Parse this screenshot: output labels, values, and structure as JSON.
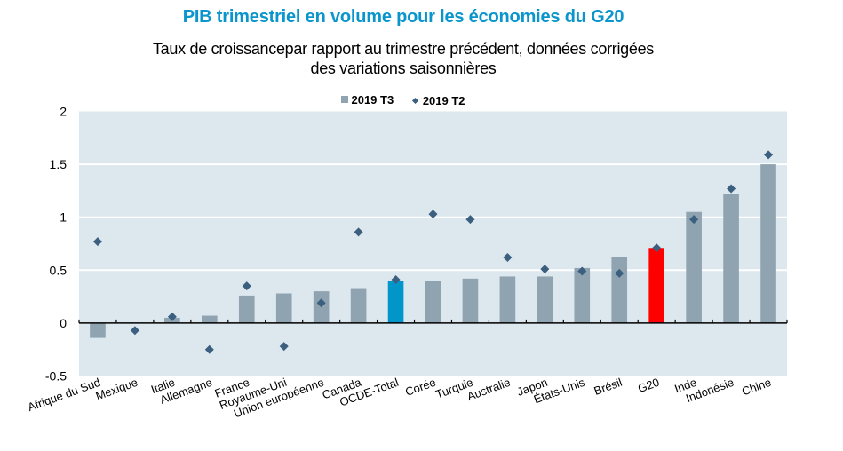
{
  "chart_data": {
    "type": "bar",
    "title": "PIB trimestriel en volume pour les économies du G20",
    "subtitle_lines": [
      "Taux de croissancepar rapport au trimestre précédent, données corrigées",
      "des variations saisonnières"
    ],
    "xlabel": "",
    "ylabel": "",
    "ylim": [
      -0.5,
      2
    ],
    "yticks": [
      2,
      1.5,
      1,
      0.5,
      0,
      -0.5
    ],
    "ytick_labels": [
      "2",
      "1.5",
      "1",
      "0.5",
      "0",
      "-0.5"
    ],
    "grid": true,
    "legend_position": "top-center",
    "categories": [
      "Afrique du Sud",
      "Mexique",
      "Italie",
      "Allemagne",
      "France",
      "Royaume-Uni",
      "Union européenne",
      "Canada",
      "OCDE-Total",
      "Corée",
      "Turquie",
      "Australie",
      "Japon",
      "États-Unis",
      "Brésil",
      "G20",
      "Inde",
      "Indonésie",
      "Chine"
    ],
    "series": [
      {
        "name": "2019 T3",
        "type": "bar",
        "color": "#8FA3B0",
        "values": [
          -0.14,
          0.0,
          0.05,
          0.07,
          0.26,
          0.28,
          0.3,
          0.33,
          0.4,
          0.4,
          0.42,
          0.44,
          0.44,
          0.52,
          0.62,
          0.71,
          1.05,
          1.22,
          1.5
        ]
      },
      {
        "name": "2019 T2",
        "type": "scatter",
        "marker": "diamond",
        "color": "#3A5F7F",
        "values": [
          0.77,
          -0.07,
          0.06,
          -0.25,
          0.35,
          -0.22,
          0.19,
          0.86,
          0.41,
          1.03,
          0.98,
          0.62,
          0.51,
          0.49,
          0.47,
          0.71,
          0.98,
          1.27,
          1.59
        ]
      }
    ],
    "highlight_colors": {
      "OCDE-Total": "#0096CA",
      "G20": "#FF0000"
    },
    "plot_background": "#DDE7EE"
  }
}
